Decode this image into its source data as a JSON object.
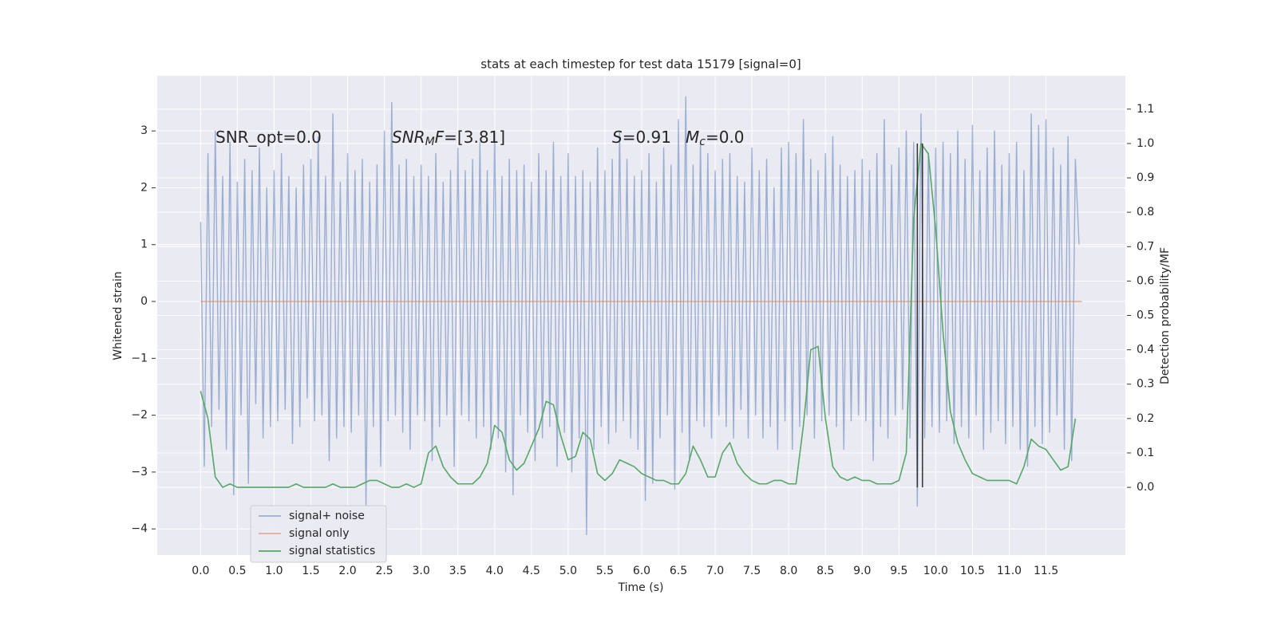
{
  "chart_data": {
    "type": "line",
    "title": "stats at each timestep for test data 15179 [signal=0]",
    "xlabel": "Time (s)",
    "ylabel": "Whitened strain",
    "y2label": "Detection probability/MF",
    "xlim": [
      -0.59,
      12.58
    ],
    "ylim": [
      -4.46,
      3.97
    ],
    "y2lim": [
      -0.197,
      1.197
    ],
    "xticks": [
      {
        "value": 0,
        "label": "0.0"
      },
      0.5,
      {
        "value": 1,
        "label": "1.0"
      },
      1.5,
      {
        "value": 2,
        "label": "2.0"
      },
      2.5,
      {
        "value": 3,
        "label": "3.0"
      },
      3.5,
      {
        "value": 4,
        "label": "4.0"
      },
      4.5,
      {
        "value": 5,
        "label": "5.0"
      },
      5.5,
      {
        "value": 6,
        "label": "6.0"
      },
      6.5,
      {
        "value": 7,
        "label": "7.0"
      },
      7.5,
      {
        "value": 8,
        "label": "8.0"
      },
      8.5,
      {
        "value": 9,
        "label": "9.0"
      },
      9.5,
      {
        "value": 10,
        "label": "10.0"
      },
      10.5,
      {
        "value": 11,
        "label": "11.0"
      },
      11.5
    ],
    "yticks": [
      {
        "value": -4,
        "label": "−4"
      },
      {
        "value": -3,
        "label": "−3"
      },
      {
        "value": -2,
        "label": "−2"
      },
      {
        "value": -1,
        "label": "−1"
      },
      0,
      1,
      2,
      3
    ],
    "y2ticks": [
      {
        "value": 0,
        "label": "0.0"
      },
      0.1,
      0.2,
      0.3,
      0.4,
      0.5,
      0.6,
      0.7,
      0.8,
      0.9,
      {
        "value": 1,
        "label": "1.0"
      },
      1.1
    ],
    "grid": true,
    "legend_loc": "lower left",
    "annotations": [
      {
        "parts": [
          {
            "text": "SNR_opt=0.0",
            "style": "normal"
          }
        ]
      },
      {
        "parts": [
          {
            "text": "SNR",
            "style": "italic"
          },
          {
            "text": "M",
            "style": "italic-sub"
          },
          {
            "text": "F",
            "style": "italic"
          },
          {
            "text": "=[3.81]",
            "style": "normal"
          }
        ]
      },
      {
        "parts": [
          {
            "text": "S",
            "style": "italic"
          },
          {
            "text": "=0.91",
            "style": "normal"
          }
        ]
      },
      {
        "parts": [
          {
            "text": "M",
            "style": "italic"
          },
          {
            "text": "c",
            "style": "italic-sub"
          },
          {
            "text": "=0.0",
            "style": "normal"
          }
        ]
      }
    ],
    "vlines": {
      "x": [
        9.75,
        9.82
      ],
      "y2_range": [
        0,
        1.0
      ],
      "color": "#333333"
    },
    "series": [
      {
        "name": "signal+ noise",
        "color": "#4c72b0",
        "opacity": 0.5,
        "x": [
          0,
          0.05,
          0.1,
          0.15,
          0.2,
          0.25,
          0.3,
          0.35,
          0.4,
          0.45,
          0.5,
          0.55,
          0.6,
          0.65,
          0.7,
          0.75,
          0.8,
          0.85,
          0.9,
          0.95,
          1,
          1.05,
          1.1,
          1.15,
          1.2,
          1.25,
          1.3,
          1.35,
          1.4,
          1.45,
          1.5,
          1.55,
          1.6,
          1.65,
          1.7,
          1.75,
          1.8,
          1.85,
          1.9,
          1.95,
          2,
          2.05,
          2.1,
          2.15,
          2.2,
          2.25,
          2.3,
          2.35,
          2.4,
          2.45,
          2.5,
          2.55,
          2.6,
          2.65,
          2.7,
          2.75,
          2.8,
          2.85,
          2.9,
          2.95,
          3,
          3.05,
          3.1,
          3.15,
          3.2,
          3.25,
          3.3,
          3.35,
          3.4,
          3.45,
          3.5,
          3.55,
          3.6,
          3.65,
          3.7,
          3.75,
          3.8,
          3.85,
          3.9,
          3.95,
          4,
          4.05,
          4.1,
          4.15,
          4.2,
          4.25,
          4.3,
          4.35,
          4.4,
          4.45,
          4.5,
          4.55,
          4.6,
          4.65,
          4.7,
          4.75,
          4.8,
          4.85,
          4.9,
          4.95,
          5,
          5.05,
          5.1,
          5.15,
          5.2,
          5.25,
          5.3,
          5.35,
          5.4,
          5.45,
          5.5,
          5.55,
          5.6,
          5.65,
          5.7,
          5.75,
          5.8,
          5.85,
          5.9,
          5.95,
          6,
          6.05,
          6.1,
          6.15,
          6.2,
          6.25,
          6.3,
          6.35,
          6.4,
          6.45,
          6.5,
          6.55,
          6.6,
          6.65,
          6.7,
          6.75,
          6.8,
          6.85,
          6.9,
          6.95,
          7,
          7.05,
          7.1,
          7.15,
          7.2,
          7.25,
          7.3,
          7.35,
          7.4,
          7.45,
          7.5,
          7.55,
          7.6,
          7.65,
          7.7,
          7.75,
          7.8,
          7.85,
          7.9,
          7.95,
          8,
          8.05,
          8.1,
          8.15,
          8.2,
          8.25,
          8.3,
          8.35,
          8.4,
          8.45,
          8.5,
          8.55,
          8.6,
          8.65,
          8.7,
          8.75,
          8.8,
          8.85,
          8.9,
          8.95,
          9,
          9.05,
          9.1,
          9.15,
          9.2,
          9.25,
          9.3,
          9.35,
          9.4,
          9.45,
          9.5,
          9.55,
          9.6,
          9.65,
          9.7,
          9.75,
          9.8,
          9.85,
          9.9,
          9.95,
          10,
          10.05,
          10.1,
          10.15,
          10.2,
          10.25,
          10.3,
          10.35,
          10.4,
          10.45,
          10.5,
          10.55,
          10.6,
          10.65,
          10.7,
          10.75,
          10.8,
          10.85,
          10.9,
          10.95,
          11,
          11.05,
          11.1,
          11.15,
          11.2,
          11.25,
          11.3,
          11.35,
          11.4,
          11.45,
          11.5,
          11.55,
          11.6,
          11.65,
          11.7,
          11.75,
          11.8,
          11.85,
          11.9,
          11.95
        ],
        "values": [
          1.4,
          -2.9,
          2.6,
          -2.2,
          3.0,
          -1.9,
          2.2,
          -2.6,
          2.8,
          -3.4,
          2.1,
          -2.0,
          2.5,
          -3.2,
          2.3,
          -1.8,
          2.7,
          -2.4,
          2.0,
          -2.2,
          2.3,
          -2.1,
          2.6,
          -1.9,
          2.2,
          -2.5,
          2.0,
          -2.2,
          2.4,
          -1.7,
          2.5,
          -2.1,
          2.9,
          -2.0,
          2.2,
          -2.8,
          3.3,
          -2.4,
          2.1,
          -2.2,
          2.6,
          -2.3,
          2.3,
          -2.0,
          2.5,
          -3.6,
          2.1,
          -2.2,
          2.4,
          -2.9,
          3.0,
          -2.1,
          3.5,
          -2.0,
          2.4,
          -2.3,
          2.5,
          -2.6,
          2.2,
          -2.0,
          2.4,
          -2.1,
          2.2,
          -2.8,
          2.6,
          -2.2,
          2.1,
          -2.0,
          2.3,
          -2.9,
          2.7,
          -2.0,
          2.3,
          -2.1,
          2.5,
          -2.4,
          2.8,
          -2.2,
          2.3,
          -2.6,
          3.0,
          -2.4,
          2.2,
          -3.0,
          2.5,
          -3.4,
          2.3,
          -2.0,
          2.4,
          -2.3,
          2.1,
          -2.8,
          2.6,
          -2.4,
          2.3,
          -2.2,
          2.8,
          -2.9,
          2.2,
          -2.3,
          2.6,
          -3.0,
          2.2,
          -2.4,
          2.3,
          -4.1,
          2.1,
          -2.6,
          2.7,
          -2.2,
          2.3,
          -2.5,
          2.5,
          -2.3,
          3.0,
          -2.1,
          2.5,
          -2.4,
          2.2,
          -2.6,
          2.3,
          -3.5,
          2.6,
          -3.2,
          2.1,
          -2.4,
          2.7,
          -2.0,
          2.4,
          -3.3,
          3.2,
          -2.3,
          3.6,
          -2.8,
          2.4,
          -2.1,
          2.8,
          -2.2,
          2.6,
          -2.4,
          2.3,
          -2.0,
          2.5,
          -2.2,
          2.6,
          -2.4,
          2.2,
          -1.9,
          2.1,
          -2.4,
          2.7,
          -2.0,
          2.3,
          -2.4,
          2.5,
          -2.2,
          2.0,
          -2.6,
          2.7,
          -2.1,
          2.8,
          -2.6,
          2.6,
          -2.2,
          3.2,
          -2.0,
          2.5,
          -2.4,
          2.3,
          -2.1,
          2.6,
          -2.0,
          2.9,
          -2.2,
          2.4,
          -2.6,
          2.2,
          -2.1,
          2.3,
          -2.0,
          2.5,
          -2.1,
          2.3,
          -2.8,
          2.6,
          -2.2,
          3.2,
          -2.4,
          2.4,
          -2.0,
          2.7,
          -1.9,
          3.0,
          -2.4,
          2.8,
          -3.6,
          3.3,
          -2.4,
          2.6,
          -2.2,
          2.7,
          -2.3,
          2.8,
          -2.1,
          2.6,
          -2.5,
          3.0,
          -2.2,
          2.5,
          -2.4,
          3.1,
          -2.0,
          2.3,
          -2.6,
          2.7,
          -2.3,
          3.0,
          -2.1,
          2.4,
          -2.5,
          2.6,
          -2.2,
          2.8,
          -2.6,
          2.3,
          -2.9,
          3.3,
          -2.2,
          3.1,
          -2.5,
          3.2,
          -2.3,
          2.7,
          -2.0,
          2.4,
          -2.6,
          2.9,
          -2.8,
          2.5,
          1.0
        ]
      },
      {
        "name": "signal only",
        "color": "#dd8452",
        "opacity": 0.6,
        "x": [
          0,
          11.99
        ],
        "values": [
          0,
          0
        ]
      },
      {
        "name": "signal statistics",
        "color": "#55a868",
        "opacity": 1,
        "axis": "y2",
        "x": [
          0,
          0.1,
          0.2,
          0.3,
          0.4,
          0.5,
          0.6,
          0.7,
          0.8,
          0.9,
          1,
          1.1,
          1.2,
          1.3,
          1.4,
          1.5,
          1.6,
          1.7,
          1.8,
          1.9,
          2,
          2.1,
          2.2,
          2.3,
          2.4,
          2.5,
          2.6,
          2.7,
          2.8,
          2.9,
          3,
          3.1,
          3.2,
          3.3,
          3.4,
          3.5,
          3.6,
          3.7,
          3.8,
          3.9,
          4,
          4.1,
          4.2,
          4.3,
          4.4,
          4.5,
          4.6,
          4.7,
          4.8,
          4.9,
          5,
          5.1,
          5.2,
          5.3,
          5.4,
          5.5,
          5.6,
          5.7,
          5.8,
          5.9,
          6,
          6.1,
          6.2,
          6.3,
          6.4,
          6.5,
          6.6,
          6.7,
          6.8,
          6.9,
          7,
          7.1,
          7.2,
          7.3,
          7.4,
          7.5,
          7.6,
          7.7,
          7.8,
          7.9,
          8,
          8.1,
          8.2,
          8.3,
          8.4,
          8.5,
          8.6,
          8.7,
          8.8,
          8.9,
          9,
          9.1,
          9.2,
          9.3,
          9.4,
          9.5,
          9.6,
          9.7,
          9.8,
          9.9,
          10,
          10.1,
          10.2,
          10.3,
          10.4,
          10.5,
          10.6,
          10.7,
          10.8,
          10.9,
          11,
          11.1,
          11.2,
          11.3,
          11.4,
          11.5,
          11.6,
          11.7,
          11.8,
          11.9
        ],
        "values": [
          0.28,
          0.2,
          0.03,
          0.0,
          0.01,
          0.0,
          0.0,
          0.0,
          0.0,
          0.0,
          0.0,
          0.0,
          0.0,
          0.01,
          0.0,
          0.0,
          0.0,
          0.0,
          0.01,
          0.0,
          0.0,
          0.0,
          0.01,
          0.02,
          0.02,
          0.01,
          0.0,
          0.0,
          0.01,
          0.0,
          0.01,
          0.1,
          0.12,
          0.06,
          0.03,
          0.01,
          0.01,
          0.01,
          0.03,
          0.07,
          0.18,
          0.16,
          0.08,
          0.05,
          0.07,
          0.12,
          0.17,
          0.25,
          0.24,
          0.15,
          0.08,
          0.09,
          0.16,
          0.14,
          0.04,
          0.02,
          0.04,
          0.08,
          0.07,
          0.06,
          0.04,
          0.03,
          0.02,
          0.02,
          0.01,
          0.01,
          0.04,
          0.12,
          0.08,
          0.03,
          0.03,
          0.1,
          0.13,
          0.07,
          0.04,
          0.02,
          0.01,
          0.01,
          0.02,
          0.02,
          0.01,
          0.01,
          0.18,
          0.4,
          0.41,
          0.2,
          0.06,
          0.03,
          0.02,
          0.03,
          0.02,
          0.02,
          0.01,
          0.01,
          0.01,
          0.02,
          0.1,
          0.78,
          1.0,
          0.97,
          0.75,
          0.45,
          0.22,
          0.13,
          0.08,
          0.04,
          0.03,
          0.02,
          0.02,
          0.02,
          0.02,
          0.01,
          0.06,
          0.14,
          0.12,
          0.11,
          0.08,
          0.05,
          0.06,
          0.2
        ]
      }
    ]
  }
}
